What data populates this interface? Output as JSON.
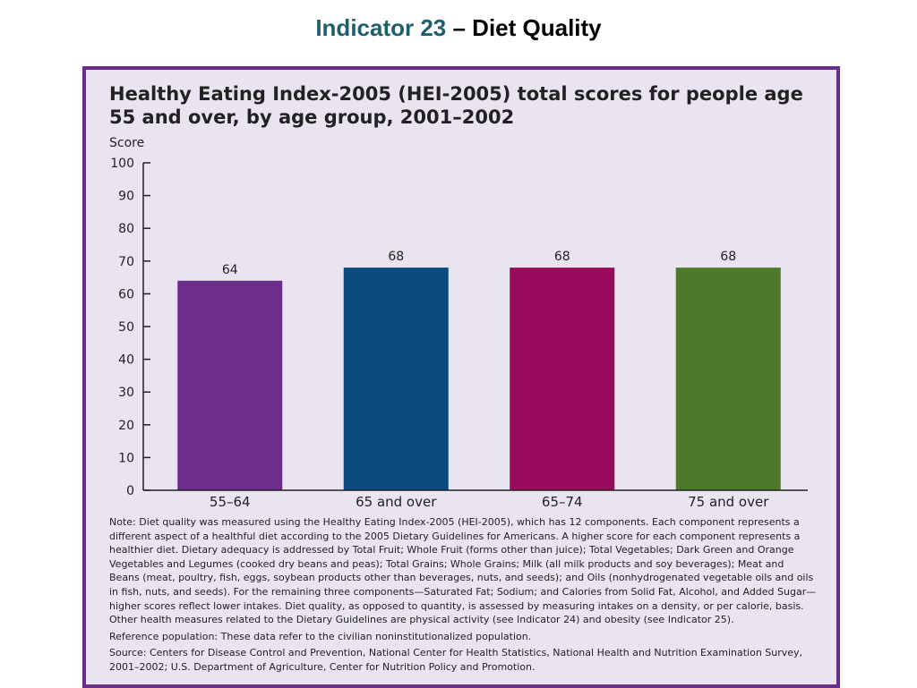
{
  "header": {
    "indicator": "Indicator 23",
    "topic": " – Diet Quality"
  },
  "chart_data": {
    "type": "bar",
    "title": "Healthy Eating Index-2005 (HEI-2005) total scores for people age 55 and over, by age group, 2001–2002",
    "ylabel": "Score",
    "xlabel": "",
    "ylim": [
      0,
      100
    ],
    "yticks": [
      0,
      10,
      20,
      30,
      40,
      50,
      60,
      70,
      80,
      90,
      100
    ],
    "categories": [
      "55–64",
      "65 and over",
      "65–74",
      "75 and over"
    ],
    "values": [
      64,
      68,
      68,
      68
    ],
    "data_labels": [
      "64",
      "68",
      "68",
      "68"
    ],
    "colors": [
      "#6b2c8c",
      "#0a4a7e",
      "#990a5c",
      "#4c7a2a"
    ],
    "grid": false
  },
  "notes": {
    "note": "Note: Diet quality was measured using the Healthy Eating Index-2005 (HEI-2005), which has 12 components. Each component represents a different aspect of a healthful diet according to the 2005 Dietary Guidelines for Americans. A higher score for each component represents a healthier diet. Dietary adequacy is addressed by Total Fruit; Whole Fruit (forms other than juice); Total Vegetables; Dark Green and Orange Vegetables and Legumes (cooked dry beans and peas); Total Grains; Whole Grains; Milk (all milk products and soy beverages); Meat and Beans (meat, poultry, fish, eggs, soybean products other than beverages, nuts, and seeds); and Oils (nonhydrogenated vegetable oils and oils in fish, nuts, and seeds). For the remaining three components—Saturated Fat; Sodium; and Calories from Solid Fat, Alcohol, and Added Sugar—higher scores reflect lower intakes. Diet quality, as opposed to quantity, is assessed by measuring intakes on a density, or per calorie, basis. Other health measures related to the Dietary Guidelines are physical activity (see Indicator 24) and obesity (see Indicator 25).",
    "reference": "Reference population: These data refer to the civilian noninstitutionalized population.",
    "source": "Source: Centers for Disease Control and Prevention, National Center for Health Statistics, National Health and Nutrition Examination Survey, 2001–2002; U.S. Department of Agriculture, Center for Nutrition Policy and Promotion."
  }
}
